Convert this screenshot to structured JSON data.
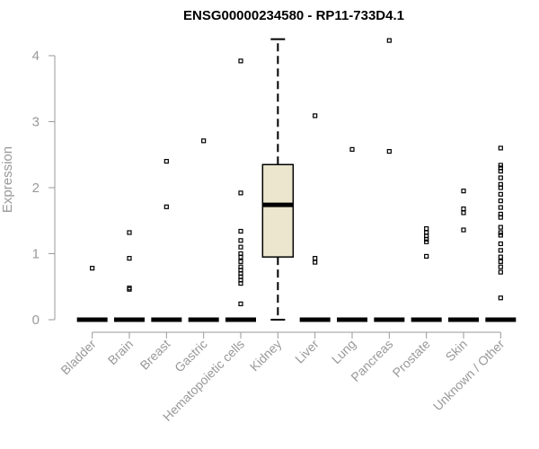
{
  "chart_data": {
    "type": "boxplot",
    "title": "ENSG00000234580 - RP11-733D4.1",
    "xlabel": "",
    "ylabel": "Expression",
    "ylim": [
      0,
      4.25
    ],
    "yticks": [
      "0",
      "1",
      "2",
      "3",
      "4"
    ],
    "grid": false,
    "categories": [
      "Bladder",
      "Brain",
      "Breast",
      "Gastric",
      "Hematopoietic cells",
      "Kidney",
      "Liver",
      "Lung",
      "Pancreas",
      "Prostate",
      "Skin",
      "Unknown / Other"
    ],
    "box_fill": "#ede6cf",
    "boxes": [
      {
        "category": "Bladder",
        "min": 0,
        "q1": 0,
        "median": 0,
        "q3": 0,
        "max": 0,
        "outliers": [
          0.78
        ]
      },
      {
        "category": "Brain",
        "min": 0,
        "q1": 0,
        "median": 0,
        "q3": 0,
        "max": 0,
        "outliers": [
          0.46,
          0.48,
          0.93,
          1.32
        ]
      },
      {
        "category": "Breast",
        "min": 0,
        "q1": 0,
        "median": 0,
        "q3": 0,
        "max": 0,
        "outliers": [
          1.71,
          2.4
        ]
      },
      {
        "category": "Gastric",
        "min": 0,
        "q1": 0,
        "median": 0,
        "q3": 0,
        "max": 0,
        "outliers": [
          2.71
        ]
      },
      {
        "category": "Hematopoietic cells",
        "min": 0,
        "q1": 0,
        "median": 0,
        "q3": 0,
        "max": 0,
        "outliers": [
          0.24,
          0.55,
          0.6,
          0.65,
          0.7,
          0.75,
          0.8,
          0.88,
          0.95,
          1.0,
          1.1,
          1.2,
          1.34,
          1.92,
          3.92
        ]
      },
      {
        "category": "Kidney",
        "min": 0,
        "q1": 0.95,
        "median": 1.74,
        "q3": 2.35,
        "max": 4.25,
        "outliers": []
      },
      {
        "category": "Liver",
        "min": 0,
        "q1": 0,
        "median": 0,
        "q3": 0,
        "max": 0,
        "outliers": [
          0.87,
          0.93,
          3.09
        ]
      },
      {
        "category": "Lung",
        "min": 0,
        "q1": 0,
        "median": 0,
        "q3": 0,
        "max": 0,
        "outliers": [
          2.58
        ]
      },
      {
        "category": "Pancreas",
        "min": 0,
        "q1": 0,
        "median": 0,
        "q3": 0,
        "max": 0,
        "outliers": [
          2.55,
          4.23
        ]
      },
      {
        "category": "Prostate",
        "min": 0,
        "q1": 0,
        "median": 0,
        "q3": 0,
        "max": 0,
        "outliers": [
          0.96,
          1.18,
          1.22,
          1.27,
          1.32,
          1.38
        ]
      },
      {
        "category": "Skin",
        "min": 0,
        "q1": 0,
        "median": 0,
        "q3": 0,
        "max": 0,
        "outliers": [
          1.36,
          1.62,
          1.68,
          1.95
        ]
      },
      {
        "category": "Unknown / Other",
        "min": 0,
        "q1": 0,
        "median": 0,
        "q3": 0,
        "max": 0,
        "outliers": [
          0.33,
          0.72,
          0.8,
          0.88,
          0.95,
          1.05,
          1.15,
          1.28,
          1.32,
          1.4,
          1.55,
          1.6,
          1.7,
          1.8,
          1.9,
          2.0,
          2.05,
          2.15,
          2.25,
          2.3,
          2.34,
          2.6
        ]
      }
    ]
  }
}
